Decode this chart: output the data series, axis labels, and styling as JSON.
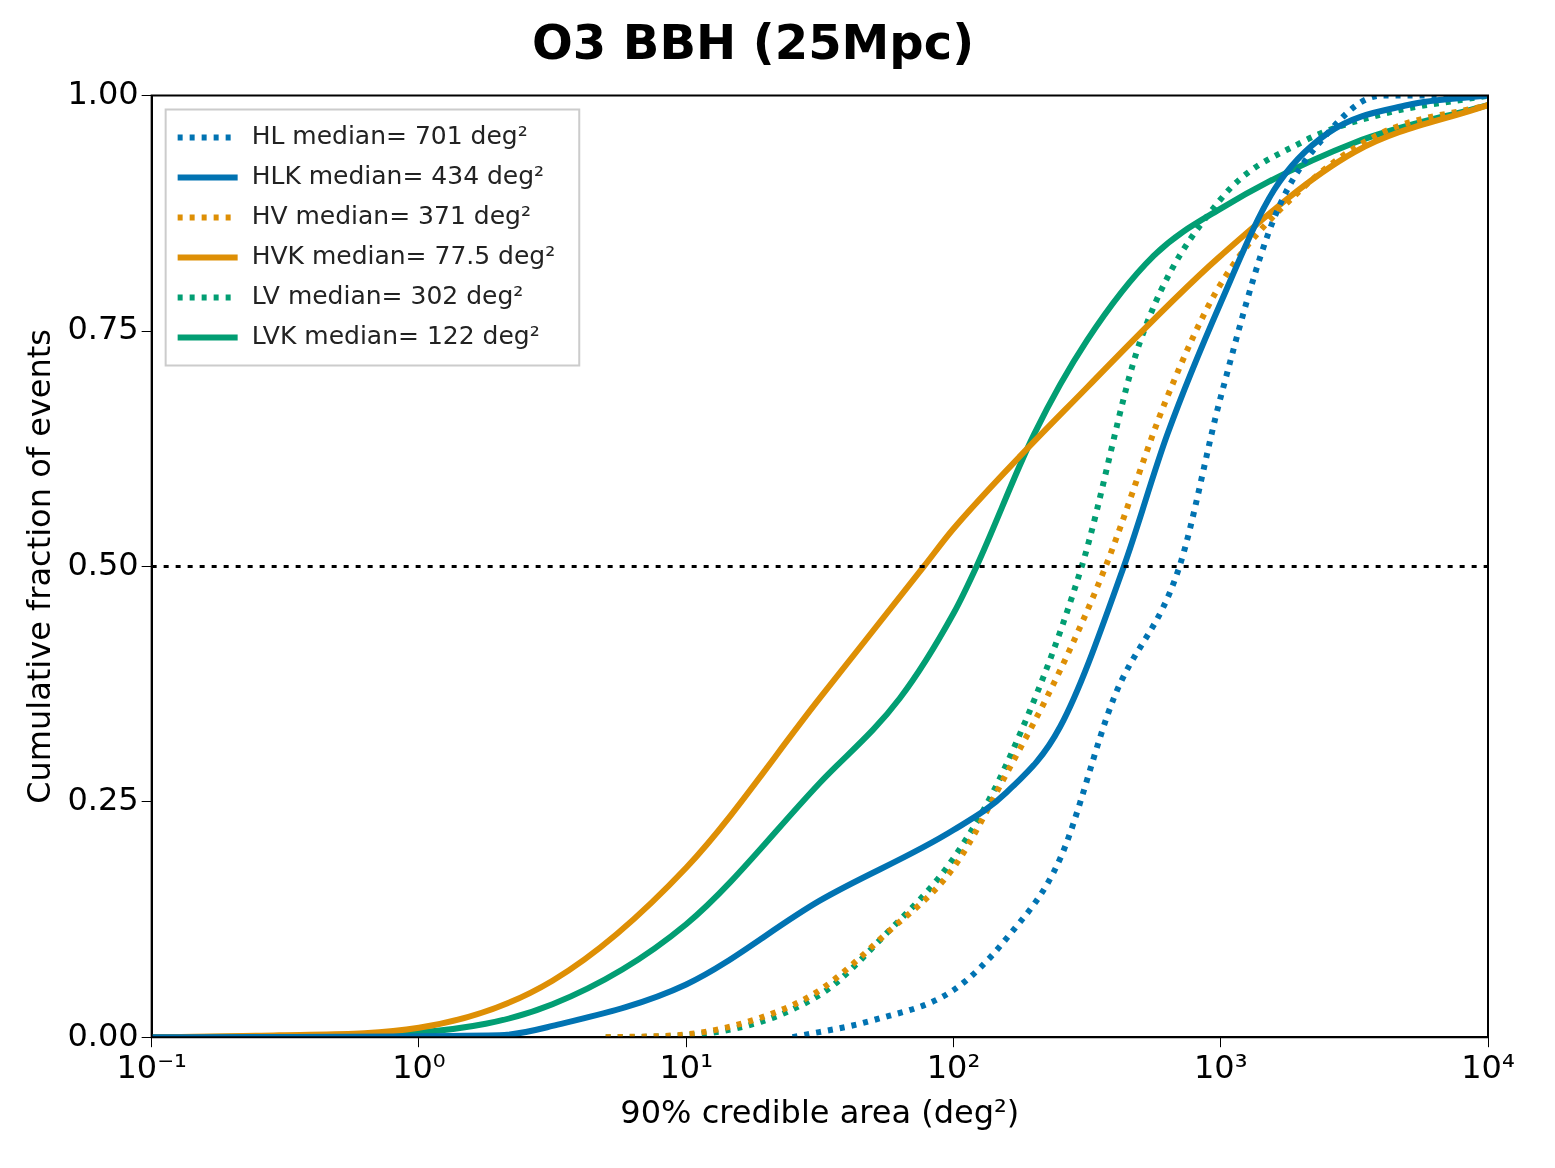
{
  "chart_data": {
    "type": "line",
    "title": "O3 BBH (25Mpc)",
    "xlabel": "90% credible area (deg²)",
    "ylabel": "Cumulative fraction of events",
    "log": "x",
    "grid": false,
    "legend": "top left",
    "marker": "none",
    "xlim": [
      0.1,
      10000
    ],
    "xticks": [
      {
        "value": 0.1,
        "label": "10⁻¹"
      },
      {
        "value": 1,
        "label": "10⁰"
      },
      {
        "value": 10,
        "label": "10¹"
      },
      {
        "value": 100,
        "label": "10²"
      },
      {
        "value": 1000,
        "label": "10³"
      },
      {
        "value": 10000,
        "label": "10⁴"
      }
    ],
    "ylim": [
      0,
      1
    ],
    "yticks": [
      {
        "value": 0,
        "label": "0.00"
      },
      {
        "value": 0.25,
        "label": "0.25"
      },
      {
        "value": 0.5,
        "label": "0.50"
      },
      {
        "value": 0.75,
        "label": "0.75"
      },
      {
        "value": 1,
        "label": "1.00"
      }
    ],
    "ref_lines": [
      {
        "axis": "y",
        "value": 0.5,
        "color": "#000000",
        "line_style": "dotted"
      }
    ],
    "series": [
      {
        "name": "HL median= 701 deg²",
        "color": "#0173b2",
        "line_style": "dotted",
        "x": [
          25,
          50,
          100,
          158,
          251,
          398,
          701,
          1000,
          1585,
          2512,
          3981,
          10000
        ],
        "values": [
          0,
          0.018,
          0.05,
          0.105,
          0.19,
          0.36,
          0.5,
          0.68,
          0.87,
          0.96,
          1,
          1
        ]
      },
      {
        "name": "HLK median= 434 deg²",
        "color": "#0173b2",
        "line_style": "solid",
        "x": [
          0.1,
          2,
          3.16,
          10,
          31.6,
          100,
          158,
          251,
          434,
          631,
          1000,
          1585,
          2512,
          5012,
          10000
        ],
        "values": [
          0,
          0.002,
          0.012,
          0.056,
          0.145,
          0.22,
          0.26,
          0.33,
          0.5,
          0.64,
          0.78,
          0.9,
          0.96,
          0.99,
          1
        ]
      },
      {
        "name": "HV median= 371 deg²",
        "color": "#de8f05",
        "line_style": "dotted",
        "x": [
          5,
          10,
          20,
          31.6,
          56,
          100,
          158,
          251,
          371,
          631,
          1000,
          1995,
          3981,
          10000
        ],
        "values": [
          0,
          0.003,
          0.023,
          0.05,
          0.11,
          0.18,
          0.28,
          0.39,
          0.5,
          0.68,
          0.8,
          0.9,
          0.96,
          0.99
        ]
      },
      {
        "name": "HVK median= 77.5 deg²",
        "color": "#de8f05",
        "line_style": "solid",
        "x": [
          0.1,
          0.3,
          1,
          3.16,
          10,
          31.6,
          77.5,
          100,
          316,
          1000,
          3162,
          10000
        ],
        "values": [
          0,
          0.002,
          0.01,
          0.06,
          0.18,
          0.36,
          0.5,
          0.54,
          0.69,
          0.83,
          0.94,
          0.99
        ]
      },
      {
        "name": "LV median= 302 deg²",
        "color": "#029e73",
        "line_style": "dotted",
        "x": [
          5,
          10,
          31.6,
          56,
          100,
          158,
          302,
          501,
          1000,
          1995,
          3981,
          10000
        ],
        "values": [
          0,
          0.002,
          0.045,
          0.11,
          0.19,
          0.29,
          0.5,
          0.74,
          0.89,
          0.95,
          0.98,
          1
        ]
      },
      {
        "name": "LVK median= 122 deg²",
        "color": "#029e73",
        "line_style": "solid",
        "x": [
          0.1,
          0.3,
          1,
          3.16,
          10,
          31.6,
          63,
          100,
          122,
          200,
          316,
          562,
          1000,
          3162,
          10000
        ],
        "values": [
          0,
          0.001,
          0.005,
          0.035,
          0.12,
          0.27,
          0.36,
          0.45,
          0.5,
          0.64,
          0.74,
          0.83,
          0.88,
          0.95,
          0.99
        ]
      }
    ]
  }
}
